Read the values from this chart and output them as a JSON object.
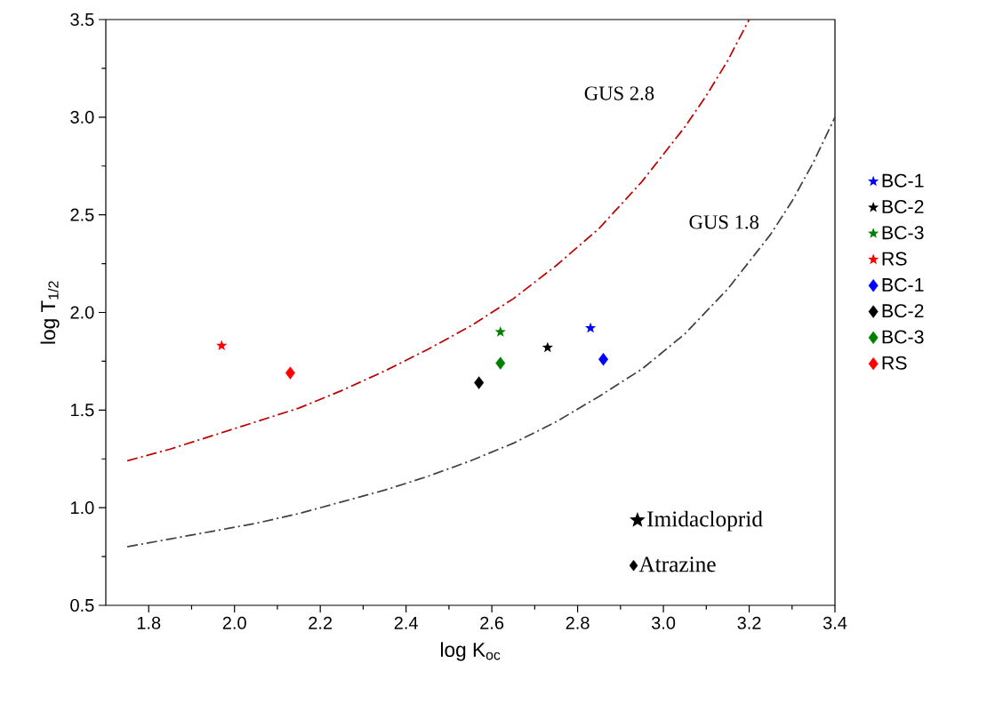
{
  "chart_data": {
    "type": "scatter",
    "xlabel": "log K$_{oc}$",
    "ylabel": "log T$_{1/2}$",
    "xlim": [
      1.7,
      3.4
    ],
    "xticks": [
      1.8,
      {
        "value": 2,
        "label": "2.0"
      },
      2.2,
      2.4,
      2.6,
      2.8,
      {
        "value": 3,
        "label": "3.0"
      },
      3.2,
      3.4
    ],
    "ylim": [
      0.5,
      3.5
    ],
    "yticks": [
      0.5,
      {
        "value": 1,
        "label": "1.0"
      },
      1.5,
      {
        "value": 2,
        "label": "2.0"
      },
      2.5,
      {
        "value": 3,
        "label": "3.0"
      },
      3.5
    ],
    "grid": false,
    "legend": "right",
    "annotations": [
      "Imidacloprid",
      "Atrazine"
    ],
    "series": [
      {
        "name": "GUS 2.8",
        "type": "line",
        "color": "#c00000",
        "marker": "none",
        "line_style": "dashdot",
        "x": [
          1.75,
          1.85,
          1.95,
          2.05,
          2.15,
          2.25,
          2.35,
          2.45,
          2.55,
          2.65,
          2.75,
          2.85,
          2.95,
          3.05,
          3.1,
          3.15,
          3.2
        ],
        "values": [
          1.24,
          1.3,
          1.37,
          1.44,
          1.51,
          1.6,
          1.7,
          1.81,
          1.93,
          2.07,
          2.24,
          2.43,
          2.67,
          2.95,
          3.11,
          3.29,
          3.5
        ]
      },
      {
        "name": "GUS 1.8",
        "type": "line",
        "color": "#404040",
        "marker": "none",
        "line_style": "dashdot",
        "x": [
          1.75,
          1.85,
          1.95,
          2.05,
          2.15,
          2.25,
          2.35,
          2.45,
          2.55,
          2.65,
          2.75,
          2.85,
          2.95,
          3.05,
          3.15,
          3.25,
          3.3,
          3.35,
          3.4
        ],
        "values": [
          0.8,
          0.84,
          0.88,
          0.92,
          0.97,
          1.03,
          1.09,
          1.16,
          1.24,
          1.33,
          1.44,
          1.57,
          1.71,
          1.89,
          2.12,
          2.4,
          2.57,
          2.77,
          3.0
        ]
      },
      {
        "name": "BC-1",
        "color": "#0000ff",
        "marker": "star",
        "x": [
          2.83
        ],
        "values": [
          1.92
        ]
      },
      {
        "name": "BC-2",
        "color": "#000000",
        "marker": "star",
        "x": [
          2.73
        ],
        "values": [
          1.82
        ]
      },
      {
        "name": "BC-3",
        "color": "#008000",
        "marker": "star",
        "x": [
          2.62
        ],
        "values": [
          1.9
        ]
      },
      {
        "name": "RS",
        "color": "#ff0000",
        "marker": "star",
        "x": [
          1.97
        ],
        "values": [
          1.83
        ]
      },
      {
        "name": "BC-1",
        "color": "#0000ff",
        "marker": "diamond",
        "x": [
          2.86
        ],
        "values": [
          1.76
        ]
      },
      {
        "name": "BC-2",
        "color": "#000000",
        "marker": "diamond",
        "x": [
          2.57
        ],
        "values": [
          1.64
        ]
      },
      {
        "name": "BC-3",
        "color": "#008000",
        "marker": "diamond",
        "x": [
          2.62
        ],
        "values": [
          1.74
        ]
      },
      {
        "name": "RS",
        "color": "#ff0000",
        "marker": "diamond",
        "x": [
          2.13
        ],
        "values": [
          1.69
        ]
      }
    ]
  }
}
